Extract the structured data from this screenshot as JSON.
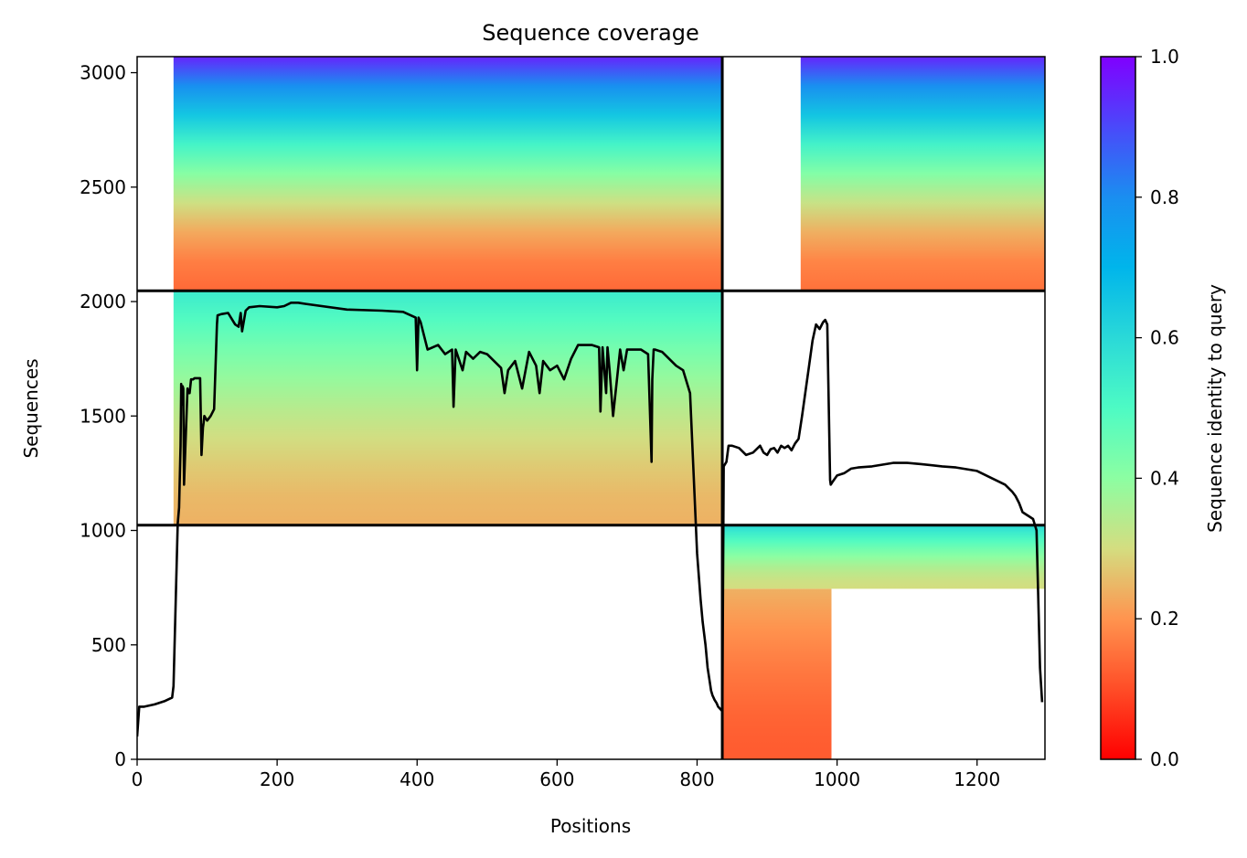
{
  "chart_data": {
    "type": "heatmap",
    "title": "Sequence coverage",
    "xlabel": "Positions",
    "ylabel": "Sequences",
    "xlim": [
      0,
      1297
    ],
    "ylim": [
      0,
      3070
    ],
    "xticks": [
      0,
      200,
      400,
      600,
      800,
      1000,
      1200
    ],
    "yticks": [
      0,
      500,
      1000,
      1500,
      2000,
      2500,
      3000
    ],
    "colorbar": {
      "label": "Sequence identity to query",
      "colormap": "rainbow",
      "range": [
        0,
        1
      ],
      "ticks": [
        "0.0",
        "0.2",
        "0.4",
        "0.6",
        "0.8",
        "1.0"
      ]
    },
    "separators": {
      "vertical_x": [
        836
      ],
      "horizontal_y": [
        1023,
        2047
      ]
    },
    "blocks": [
      {
        "x": [
          0,
          836
        ],
        "y": [
          2047,
          3070
        ],
        "coverage_start": 52,
        "identity_bottom": 0.14,
        "identity_top": 0.95
      },
      {
        "x": [
          836,
          1297
        ],
        "y": [
          2047,
          3070
        ],
        "coverage_start": 948,
        "identity_bottom": 0.15,
        "identity_top": 0.95
      },
      {
        "x": [
          0,
          836
        ],
        "y": [
          1023,
          2047
        ],
        "coverage_start": 52,
        "identity_bottom": 0.24,
        "identity_top": 0.55
      },
      {
        "x": [
          836,
          992
        ],
        "y": [
          0,
          745
        ],
        "coverage_start": 836,
        "identity_bottom": 0.12,
        "identity_top": 0.24
      },
      {
        "x": [
          836,
          1297
        ],
        "y": [
          745,
          1023
        ],
        "coverage_start": 836,
        "identity_bottom": 0.3,
        "identity_top": 0.6
      }
    ],
    "coverage_line": {
      "x": [
        0,
        3,
        10,
        25,
        30,
        40,
        50,
        52,
        56,
        58,
        60,
        62,
        63,
        64,
        65,
        66,
        67,
        72,
        73,
        75,
        77,
        80,
        82,
        90,
        92,
        94,
        95,
        96,
        100,
        105,
        110,
        114,
        115,
        120,
        130,
        140,
        145,
        148,
        150,
        155,
        160,
        175,
        200,
        210,
        220,
        230,
        240,
        300,
        350,
        380,
        398,
        400,
        402,
        405,
        415,
        430,
        440,
        450,
        452,
        455,
        465,
        470,
        480,
        490,
        500,
        520,
        525,
        530,
        540,
        550,
        560,
        570,
        575,
        580,
        590,
        600,
        610,
        620,
        630,
        650,
        660,
        662,
        665,
        670,
        672,
        675,
        680,
        690,
        695,
        700,
        720,
        730,
        735,
        736,
        738,
        740,
        750,
        770,
        780,
        790,
        800,
        805,
        808,
        812,
        815,
        818,
        820,
        822,
        825,
        828,
        830,
        833,
        836,
        838,
        840,
        842,
        845,
        850,
        860,
        870,
        880,
        890,
        895,
        900,
        905,
        910,
        915,
        920,
        925,
        930,
        935,
        940,
        945,
        950,
        960,
        965,
        970,
        975,
        980,
        983,
        986,
        990,
        991,
        993,
        1000,
        1010,
        1020,
        1030,
        1050,
        1080,
        1100,
        1120,
        1150,
        1170,
        1200,
        1220,
        1240,
        1250,
        1255,
        1260,
        1265,
        1270,
        1275,
        1280,
        1285,
        1290,
        1293,
        1295,
        1296,
        1297
      ],
      "y": [
        100,
        230,
        230,
        240,
        245,
        255,
        270,
        320,
        800,
        1030,
        1100,
        1370,
        1640,
        1550,
        1630,
        1620,
        1200,
        1620,
        1600,
        1600,
        1660,
        1660,
        1665,
        1665,
        1330,
        1450,
        1470,
        1500,
        1480,
        1500,
        1530,
        1900,
        1940,
        1945,
        1950,
        1900,
        1890,
        1950,
        1870,
        1960,
        1975,
        1980,
        1975,
        1980,
        1995,
        1995,
        1990,
        1965,
        1960,
        1955,
        1930,
        1700,
        1930,
        1910,
        1790,
        1810,
        1770,
        1790,
        1540,
        1790,
        1700,
        1780,
        1750,
        1780,
        1770,
        1710,
        1600,
        1700,
        1740,
        1620,
        1780,
        1720,
        1600,
        1740,
        1700,
        1720,
        1660,
        1750,
        1810,
        1810,
        1800,
        1520,
        1800,
        1600,
        1800,
        1700,
        1500,
        1790,
        1700,
        1790,
        1790,
        1770,
        1300,
        1660,
        1790,
        1790,
        1780,
        1720,
        1700,
        1600,
        900,
        700,
        600,
        500,
        400,
        340,
        300,
        280,
        260,
        245,
        230,
        220,
        210,
        1280,
        1290,
        1300,
        1370,
        1370,
        1360,
        1330,
        1340,
        1370,
        1340,
        1330,
        1355,
        1360,
        1340,
        1370,
        1360,
        1370,
        1350,
        1380,
        1400,
        1500,
        1720,
        1830,
        1900,
        1880,
        1910,
        1920,
        1900,
        1220,
        1200,
        1210,
        1240,
        1250,
        1270,
        1275,
        1280,
        1295,
        1295,
        1290,
        1280,
        1275,
        1260,
        1230,
        1200,
        1170,
        1150,
        1120,
        1080,
        1070,
        1060,
        1050,
        1000,
        400,
        250
      ]
    }
  }
}
